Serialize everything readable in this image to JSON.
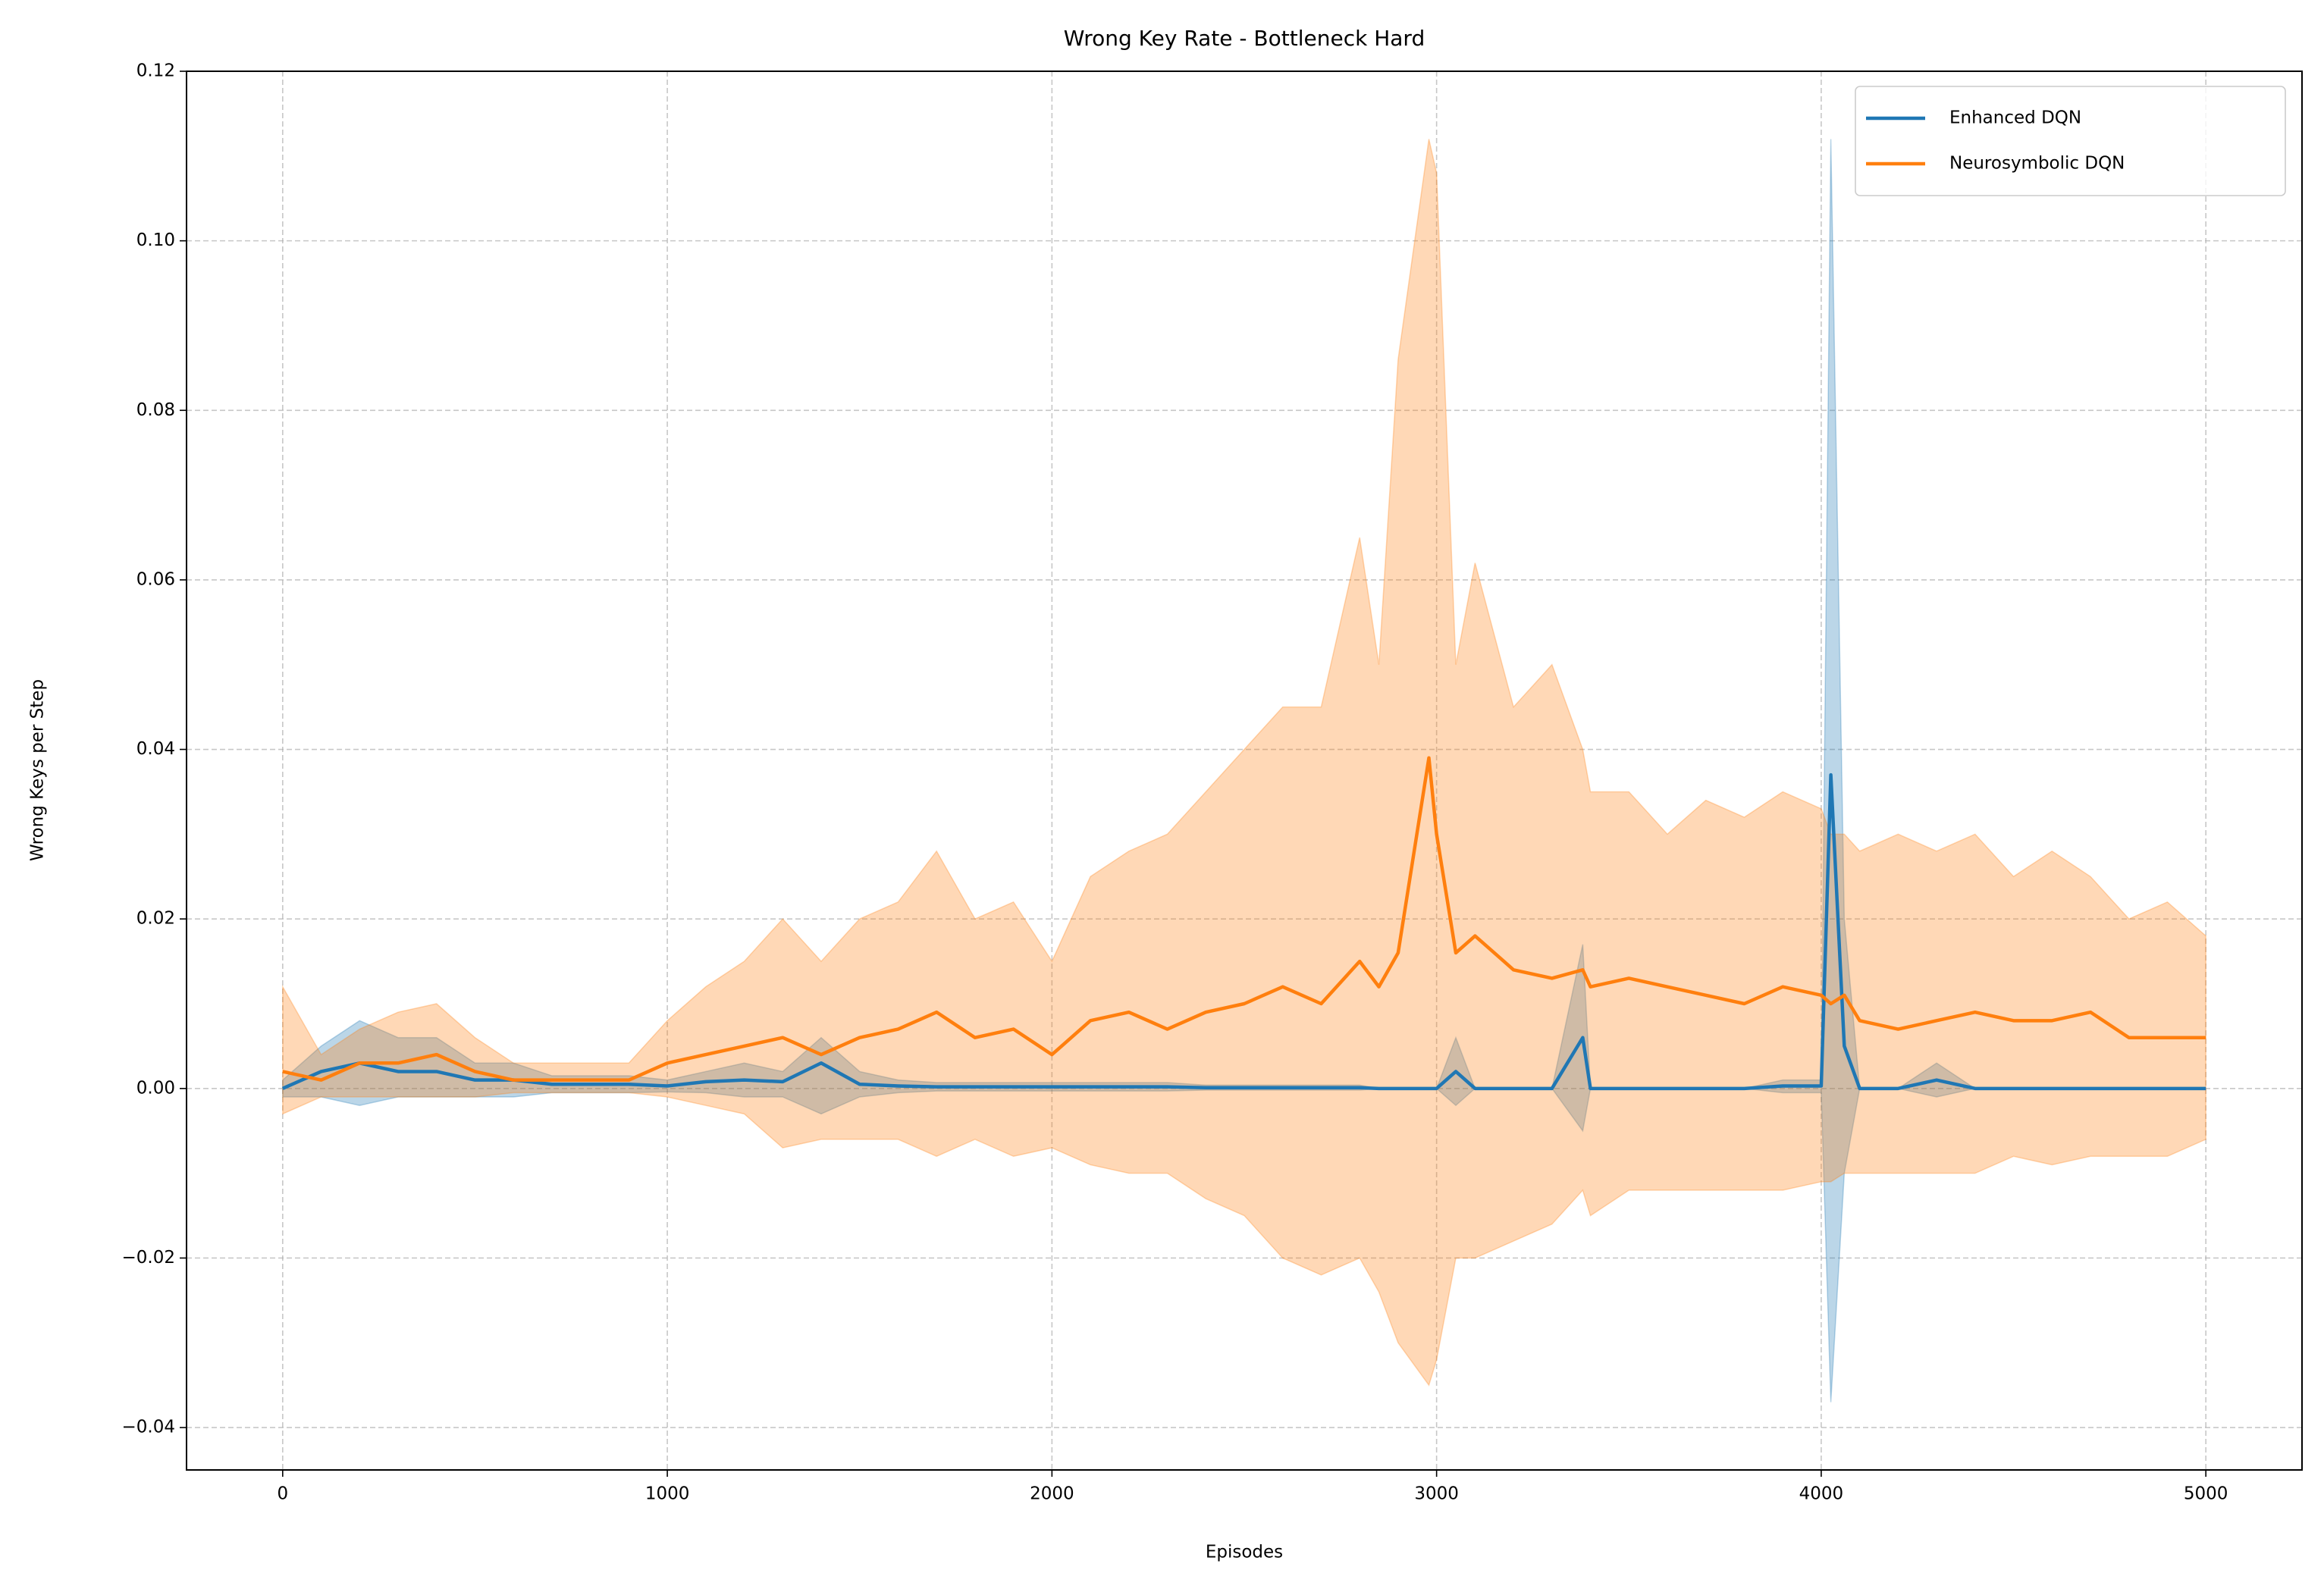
{
  "chart_data": {
    "type": "line",
    "title": "Wrong Key Rate - Bottleneck Hard",
    "x_label": "Episodes",
    "y_label": "Wrong Keys per Step",
    "x": [
      0,
      100,
      200,
      300,
      400,
      500,
      600,
      700,
      800,
      900,
      1000,
      1100,
      1200,
      1300,
      1400,
      1500,
      1600,
      1700,
      1800,
      1900,
      2000,
      2100,
      2200,
      2300,
      2400,
      2500,
      2600,
      2700,
      2800,
      2850,
      2900,
      2980,
      3000,
      3050,
      3100,
      3200,
      3300,
      3380,
      3400,
      3500,
      3600,
      3700,
      3800,
      3900,
      4000,
      4025,
      4060,
      4100,
      4200,
      4300,
      4400,
      4500,
      4600,
      4700,
      4800,
      4900,
      5000
    ],
    "series": [
      {
        "name": "Enhanced DQN",
        "color": "#1f77b4",
        "values": [
          0,
          0.002,
          0.003,
          0.002,
          0.002,
          0.001,
          0.001,
          0.0005,
          0.0005,
          0.0005,
          0.0003,
          0.0008,
          0.001,
          0.0008,
          0.003,
          0.0005,
          0.0003,
          0.0002,
          0.0002,
          0.0002,
          0.0002,
          0.0002,
          0.0002,
          0.0002,
          0.0001,
          0.0001,
          0.0001,
          0.0001,
          0.0001,
          0,
          0,
          0,
          0,
          0.002,
          0,
          0,
          0,
          0.006,
          0,
          0,
          0,
          0,
          0,
          0.0003,
          0.0003,
          0.037,
          0.005,
          0,
          0,
          0.001,
          0,
          0,
          0,
          0,
          0,
          0,
          0
        ],
        "lower": [
          -0.001,
          -0.001,
          -0.002,
          -0.001,
          -0.001,
          -0.001,
          -0.001,
          -0.0005,
          -0.0005,
          -0.0005,
          -0.0004,
          -0.0005,
          -0.001,
          -0.001,
          -0.003,
          -0.001,
          -0.0005,
          -0.0003,
          -0.0003,
          -0.0003,
          -0.0003,
          -0.0003,
          -0.0003,
          -0.0003,
          -0.0002,
          -0.0002,
          -0.0002,
          -0.0002,
          -0.0002,
          0,
          0,
          0,
          0,
          -0.002,
          0,
          0,
          0,
          -0.005,
          0,
          0,
          0,
          0,
          0,
          -0.0005,
          -0.0005,
          -0.037,
          -0.01,
          0,
          0,
          -0.001,
          0,
          0,
          0,
          0,
          0,
          0,
          0
        ],
        "upper": [
          0.001,
          0.005,
          0.008,
          0.006,
          0.006,
          0.003,
          0.003,
          0.0015,
          0.0015,
          0.0015,
          0.001,
          0.002,
          0.003,
          0.002,
          0.006,
          0.002,
          0.001,
          0.0007,
          0.0007,
          0.0007,
          0.0007,
          0.0007,
          0.0007,
          0.0007,
          0.0004,
          0.0004,
          0.0004,
          0.0004,
          0.0004,
          0,
          0,
          0,
          0,
          0.006,
          0,
          0,
          0,
          0.017,
          0,
          0,
          0,
          0,
          0,
          0.001,
          0.001,
          0.112,
          0.02,
          0,
          0,
          0.003,
          0,
          0,
          0,
          0,
          0,
          0,
          0
        ]
      },
      {
        "name": "Neurosymbolic DQN",
        "color": "#ff7f0e",
        "values": [
          0.002,
          0.001,
          0.003,
          0.003,
          0.004,
          0.002,
          0.001,
          0.001,
          0.001,
          0.001,
          0.003,
          0.004,
          0.005,
          0.006,
          0.004,
          0.006,
          0.007,
          0.009,
          0.006,
          0.007,
          0.004,
          0.008,
          0.009,
          0.007,
          0.009,
          0.01,
          0.012,
          0.01,
          0.015,
          0.012,
          0.016,
          0.039,
          0.03,
          0.016,
          0.018,
          0.014,
          0.013,
          0.014,
          0.012,
          0.013,
          0.012,
          0.011,
          0.01,
          0.012,
          0.011,
          0.01,
          0.011,
          0.008,
          0.007,
          0.008,
          0.009,
          0.008,
          0.008,
          0.009,
          0.006,
          0.006,
          0.006
        ],
        "lower": [
          -0.003,
          -0.001,
          -0.001,
          -0.001,
          -0.001,
          -0.001,
          -0.0005,
          -0.0005,
          -0.0005,
          -0.0005,
          -0.001,
          -0.002,
          -0.003,
          -0.007,
          -0.006,
          -0.006,
          -0.006,
          -0.008,
          -0.006,
          -0.008,
          -0.007,
          -0.009,
          -0.01,
          -0.01,
          -0.013,
          -0.015,
          -0.02,
          -0.022,
          -0.02,
          -0.024,
          -0.03,
          -0.035,
          -0.032,
          -0.02,
          -0.02,
          -0.018,
          -0.016,
          -0.012,
          -0.015,
          -0.012,
          -0.012,
          -0.012,
          -0.012,
          -0.012,
          -0.011,
          -0.011,
          -0.01,
          -0.01,
          -0.01,
          -0.01,
          -0.01,
          -0.008,
          -0.009,
          -0.008,
          -0.008,
          -0.008,
          -0.006
        ],
        "upper": [
          0.012,
          0.004,
          0.007,
          0.009,
          0.01,
          0.006,
          0.003,
          0.003,
          0.003,
          0.003,
          0.008,
          0.012,
          0.015,
          0.02,
          0.015,
          0.02,
          0.022,
          0.028,
          0.02,
          0.022,
          0.015,
          0.025,
          0.028,
          0.03,
          0.035,
          0.04,
          0.045,
          0.045,
          0.065,
          0.05,
          0.086,
          0.112,
          0.108,
          0.05,
          0.062,
          0.045,
          0.05,
          0.04,
          0.035,
          0.035,
          0.03,
          0.034,
          0.032,
          0.035,
          0.033,
          0.03,
          0.03,
          0.028,
          0.03,
          0.028,
          0.03,
          0.025,
          0.028,
          0.025,
          0.02,
          0.022,
          0.018
        ]
      }
    ],
    "xlim": [
      -250,
      5250
    ],
    "ylim": [
      -0.045,
      0.12
    ],
    "xticks": [
      0,
      1000,
      2000,
      3000,
      4000,
      5000
    ],
    "yticks": [
      {
        "value": -0.04,
        "label": "−0.04"
      },
      {
        "value": -0.02,
        "label": "−0.02"
      },
      {
        "value": 0,
        "label": "0.00"
      },
      {
        "value": 0.02,
        "label": "0.02"
      },
      {
        "value": 0.04,
        "label": "0.04"
      },
      {
        "value": 0.06,
        "label": "0.06"
      },
      {
        "value": 0.08,
        "label": "0.08"
      },
      {
        "value": 0.1,
        "label": "0.10"
      },
      {
        "value": 0.12,
        "label": "0.12"
      }
    ],
    "grid": true,
    "legend": "upper right",
    "band_opacity": 0.3
  }
}
